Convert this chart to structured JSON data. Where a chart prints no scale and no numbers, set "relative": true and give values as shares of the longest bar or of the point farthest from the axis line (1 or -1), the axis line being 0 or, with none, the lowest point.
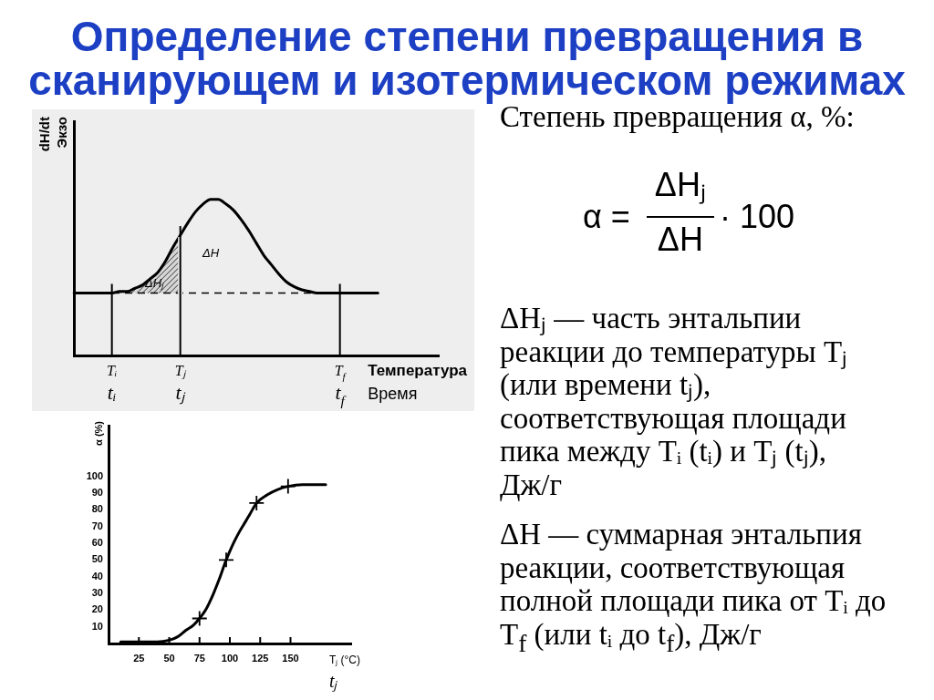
{
  "chart_data": [
    {
      "type": "line",
      "title": "Определение степени превращения в сканирующем и изотермическом режимах",
      "relative": true,
      "xlabel": "Температура",
      "ylabel": "dH/dt\nЭкзо",
      "categories": [
        null,
        null,
        null,
        null,
        null,
        "Tᵢ",
        null,
        null,
        null,
        null,
        null,
        null,
        null,
        null,
        "Tⱼ",
        null,
        null,
        null,
        null,
        null,
        null,
        null,
        null,
        null,
        null,
        null,
        null,
        null,
        null,
        null,
        null,
        null,
        null,
        null,
        null,
        "T$_{f}$",
        null,
        null,
        null,
        null,
        null,
        null,
        null,
        null,
        null,
        null,
        null,
        null,
        null
      ],
      "series": [
        {
          "color": "#000000",
          "values": [
            0.4,
            0.4,
            0.4,
            0.4,
            0.4,
            0.4,
            0.41,
            0.41,
            0.43,
            0.45,
            0.49,
            0.53,
            0.6,
            0.69,
            0.77,
            0.85,
            0.92,
            0.97,
            1,
            1,
            0.97,
            0.93,
            0.87,
            0.8,
            0.72,
            0.64,
            0.58,
            0.52,
            0.47,
            0.44,
            0.42,
            0.41,
            0.4,
            0.4,
            0.4,
            0.4,
            0.4,
            0.4,
            0.4,
            0.4,
            0.4,
            null,
            null,
            null,
            null,
            null,
            null,
            null,
            null
          ],
          "lower": [
            null,
            null,
            null,
            null,
            null,
            0.4,
            0.4,
            0.4,
            0.4,
            0.4,
            0.4,
            0.4,
            0.4,
            0.4,
            0.4,
            null,
            null,
            null,
            null,
            null,
            null,
            null,
            null,
            null,
            null,
            null,
            null,
            null,
            null,
            null,
            null,
            null,
            null,
            null,
            null,
            null,
            null,
            null,
            null,
            null,
            null,
            null,
            null,
            null,
            null,
            null,
            null,
            null,
            null
          ],
          "upper": [
            null,
            null,
            null,
            null,
            null,
            0.4,
            0.41,
            0.41,
            0.43,
            0.45,
            0.49,
            0.53,
            0.6,
            0.69,
            0.77,
            null,
            null,
            null,
            null,
            null,
            null,
            null,
            null,
            null,
            null,
            null,
            null,
            null,
            null,
            null,
            null,
            null,
            null,
            null,
            null,
            null,
            null,
            null,
            null,
            null,
            null,
            null,
            null,
            null,
            null,
            null,
            null,
            null,
            null
          ]
        }
      ],
      "ref_lines": [
        {
          "axis": "y",
          "value": 0.4,
          "line_style": "dashed"
        },
        {
          "axis": "x",
          "value": "Tᵢ"
        },
        {
          "axis": "x",
          "value": "Tⱼ"
        },
        {
          "axis": "x",
          "value": "T$_{f}$"
        }
      ],
      "annotations": [
        "tᵢ",
        "tⱼ",
        "t$_{f}$",
        "Время",
        "ΔHⱼ",
        "ΔH"
      ]
    },
    {
      "type": "line",
      "xlabel": "Tⱼ (°C)",
      "ylabel": "α (%)",
      "xlim": [
        0,
        200
      ],
      "xticks": [
        25,
        50,
        75,
        100,
        125,
        150
      ],
      "ylim": [
        0,
        130
      ],
      "yticks": [
        10,
        20,
        30,
        40,
        50,
        60,
        70,
        80,
        90,
        100
      ],
      "series": [
        {
          "x": [
            10,
            25,
            40,
            50,
            57,
            64,
            70,
            75,
            80,
            86,
            91,
            97,
            103,
            108,
            113,
            117,
            122,
            131,
            139,
            148,
            160,
            179
          ],
          "values": [
            1,
            1,
            1,
            2,
            4,
            8,
            11,
            15,
            20,
            29,
            38,
            50,
            60,
            67,
            73,
            78,
            84,
            89,
            92,
            94,
            95,
            95
          ],
          "color": "#000000",
          "marker": "none"
        },
        {
          "type": "scatter",
          "x": [
            75,
            97,
            122,
            148
          ],
          "values": [
            15,
            50,
            84,
            94
          ],
          "color": "#000000",
          "marker": "cross"
        }
      ],
      "annotations": [
        "tⱼ"
      ]
    },
    {
      "type": "other",
      "title": "Степень превращения α, %:",
      "annotations": [
        "α =",
        "ΔHⱼ",
        "ΔH",
        "· 100",
        "ΔHⱼ — часть энтальпии реакции до температуры Tⱼ (или времени tⱼ), соответствующая площади пика между Tᵢ (tᵢ) и Tⱼ (tⱼ), Дж/г",
        "ΔH — суммарная энтальпия реакции, соответствующая полной площади пика от Tᵢ до T$_{f}$ (или tᵢ до t$_{f}$), Дж/г"
      ]
    }
  ]
}
